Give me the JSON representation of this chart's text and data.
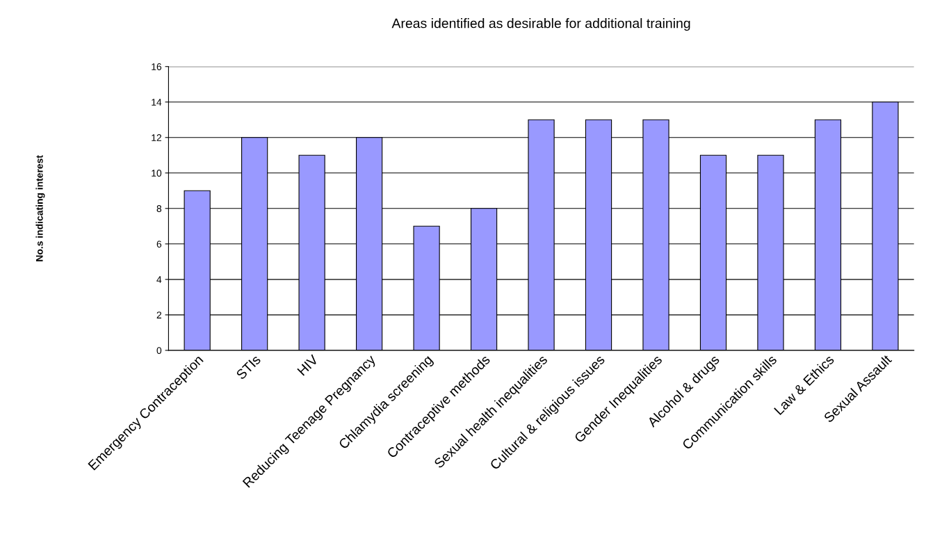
{
  "chart_data": {
    "type": "bar",
    "title": "Areas identified as desirable for additional training",
    "ylabel": "No.s indicating interest",
    "categories": [
      "Emergency Contraception",
      "STIs",
      "HIV",
      "Reducing Teenage Pregnancy",
      "Chlamydia screening",
      "Contraceptive methods",
      "Sexual health inequalities",
      "Cultural & religious issues",
      "Gender Inequalities",
      "Alcohol & drugs",
      "Communication skills",
      "Law & Ethics",
      "Sexual Assault"
    ],
    "values": [
      9,
      12,
      11,
      12,
      7,
      8,
      13,
      13,
      13,
      11,
      11,
      13,
      14
    ],
    "color": "#9999ff",
    "ylim": [
      0,
      16
    ],
    "yticks": [
      0,
      2,
      4,
      6,
      8,
      10,
      12,
      14,
      16
    ],
    "grid": "y",
    "legend": false
  }
}
